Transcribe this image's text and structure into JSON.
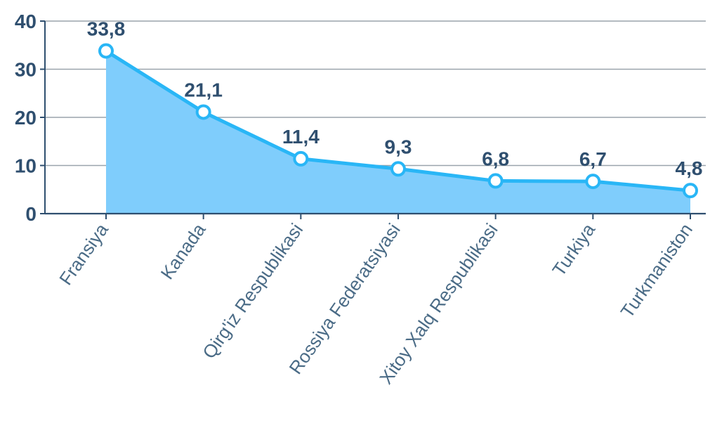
{
  "chart_data": {
    "type": "area",
    "categories": [
      "Fransiya",
      "Kanada",
      "Qirg'iz Respublikasi",
      "Rossiya Federatsiyasi",
      "Xitoy Xalq Respublikasi",
      "Turkiya",
      "Turkmaniston"
    ],
    "values": [
      33.8,
      21.1,
      11.4,
      9.3,
      6.8,
      6.7,
      4.8
    ],
    "data_labels": [
      "33,8",
      "21,1",
      "11,4",
      "9,3",
      "6,8",
      "6,7",
      "4,8"
    ],
    "y_ticks": [
      0,
      10,
      20,
      30,
      40
    ],
    "y_tick_labels": [
      "0",
      "10",
      "20",
      "30",
      "40"
    ],
    "ylim": [
      0,
      40
    ],
    "grid": true,
    "legend": "none",
    "title": "",
    "xlabel": "",
    "ylabel": "",
    "colors": {
      "line": "#29b6f6",
      "area": "#7fcdfc",
      "marker_fill": "#ffffff",
      "grid": "#9aa4ac",
      "axis": "#2f4f6f",
      "label": "#2f4f6f",
      "category_label": "#4a6b86"
    }
  }
}
